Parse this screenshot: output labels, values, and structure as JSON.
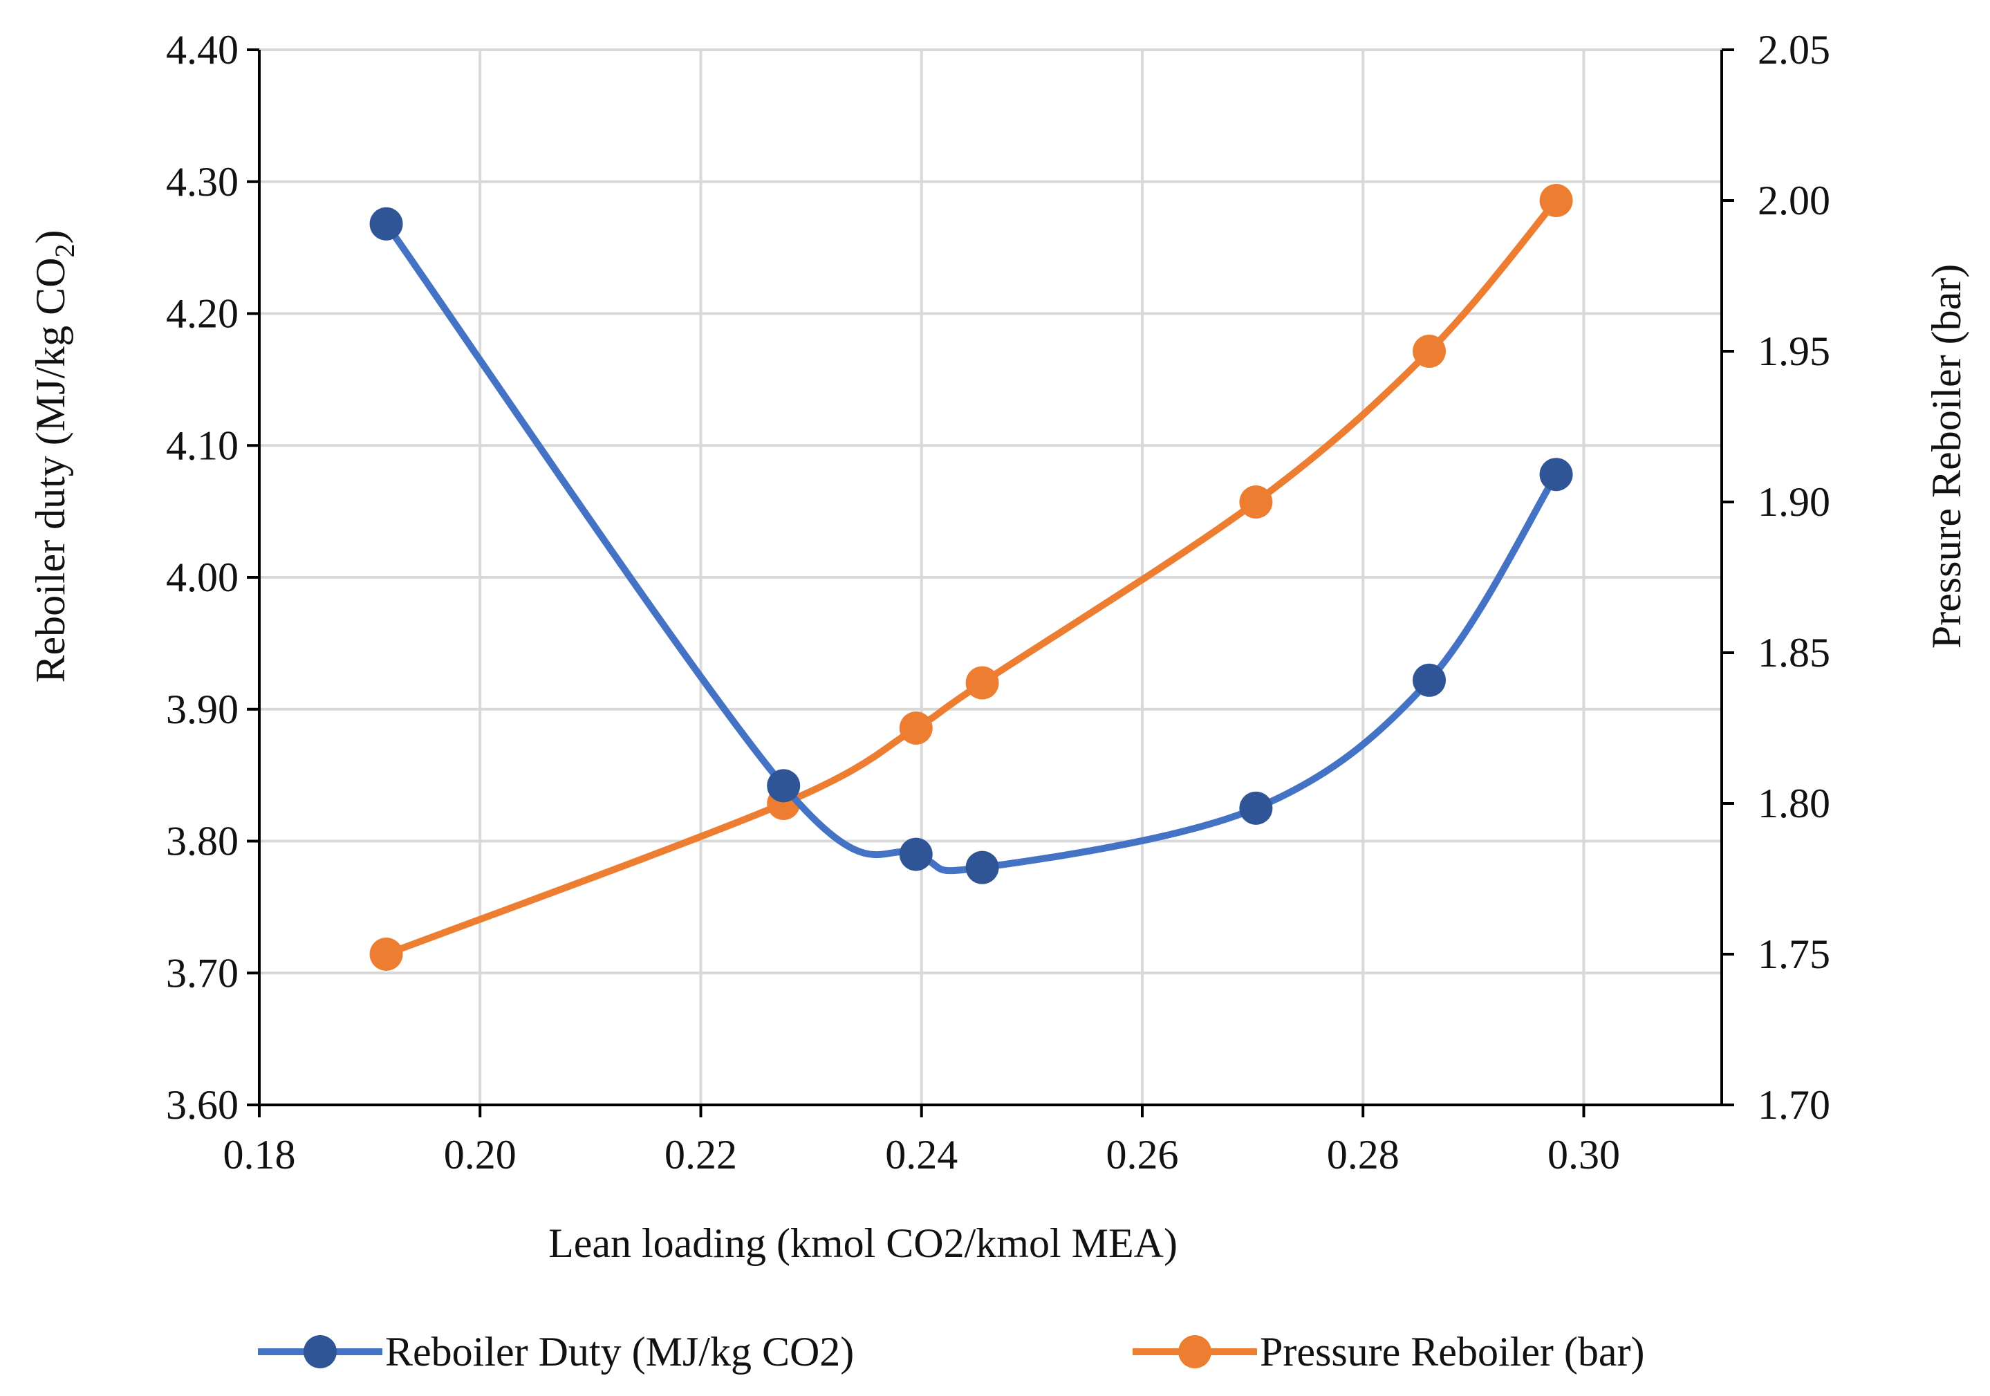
{
  "chart_data": {
    "type": "line",
    "title": "",
    "xlabel": "Lean loading (kmol CO2/kmol MEA)",
    "ylabel_left": "Reboiler duty (MJ/kg CO",
    "ylabel_left_sub": "2",
    "ylabel_left_close": ")",
    "ylabel_right": "Pressure Reboiler (bar)",
    "xlim": [
      0.18,
      0.3125
    ],
    "ylim_left": [
      3.6,
      4.4
    ],
    "ylim_right": [
      1.7,
      2.05
    ],
    "x_ticks": [
      "0.18",
      "0.20",
      "0.22",
      "0.24",
      "0.26",
      "0.28",
      "0.30"
    ],
    "y_left_ticks": [
      "3.60",
      "3.70",
      "3.80",
      "3.90",
      "4.00",
      "4.10",
      "4.20",
      "4.30",
      "4.40"
    ],
    "y_right_ticks": [
      "1.70",
      "1.75",
      "1.80",
      "1.85",
      "1.90",
      "1.95",
      "2.00",
      "2.05"
    ],
    "grid": true,
    "legend_position": "bottom",
    "series": [
      {
        "name": "Reboiler Duty (MJ/kg CO2)",
        "axis": "left",
        "color": "#4472C4",
        "marker_color": "#2F5597",
        "x": [
          0.1915,
          0.2275,
          0.2395,
          0.2455,
          0.2703,
          0.286,
          0.2975
        ],
        "values": [
          4.268,
          3.842,
          3.79,
          3.78,
          3.825,
          3.922,
          4.078
        ]
      },
      {
        "name": "Pressure Reboiler (bar)",
        "axis": "right",
        "color": "#ED7D31",
        "marker_color": "#ED7D31",
        "x": [
          0.1915,
          0.2275,
          0.2395,
          0.2455,
          0.2703,
          0.286,
          0.2975
        ],
        "values": [
          1.75,
          1.8,
          1.825,
          1.84,
          1.9,
          1.95,
          2.0
        ]
      }
    ]
  }
}
